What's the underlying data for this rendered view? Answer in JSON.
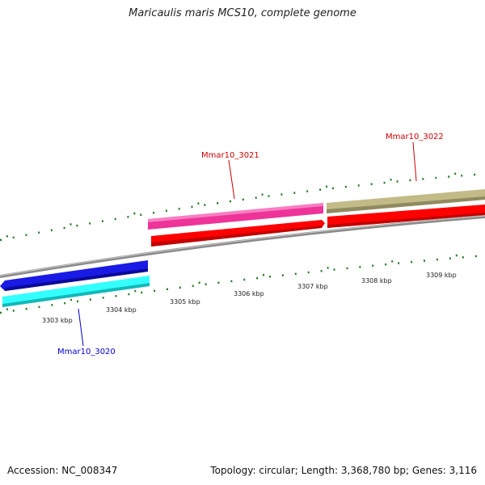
{
  "title": "Maricaulis maris MCS10, complete genome",
  "footer": {
    "accession": "Accession: NC_008347",
    "summary": "Topology: circular; Length: 3,368,780 bp; Genes: 3,116"
  },
  "colors": {
    "backbone": "#8a8a8a",
    "tick": "#2a7a2a",
    "forward_label": "#cc0000",
    "reverse_label": "#0000cc"
  },
  "scale_labels": [
    "3303 kbp",
    "3304 kbp",
    "3305 kbp",
    "3306 kbp",
    "3307 kbp",
    "3308 kbp",
    "3309 kbp"
  ],
  "genes": [
    {
      "label": "Mmar10_3020",
      "strand": "reverse",
      "color": "#1a1ae6",
      "cds_color": "#33ffff"
    },
    {
      "label": "Mmar10_3021",
      "strand": "forward",
      "color": "#ee3399",
      "cds_color": "#ff0000"
    },
    {
      "label": "Mmar10_3022",
      "strand": "forward",
      "color": "#c2bb88",
      "cds_color": "#ff0000"
    }
  ]
}
